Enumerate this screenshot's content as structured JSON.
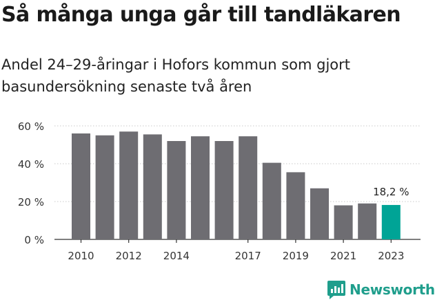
{
  "header": {
    "title": "Så många unga går till tandläkaren",
    "subtitle": "Andel 24–29-åringar i Hofors kommun som gjort basundersökning senaste två åren"
  },
  "brand": {
    "name": "Newsworthy",
    "logo_icon": "bar-chart-speech-bubble-icon"
  },
  "colors": {
    "bar": "#6e6d72",
    "highlight": "#00a496",
    "grid": "#c9c9c9",
    "axis": "#333333",
    "brand": "#1f9e8c"
  },
  "chart_data": {
    "type": "bar",
    "categories": [
      "2010",
      "2011",
      "2012",
      "2013",
      "2014",
      "2015",
      "2016",
      "2017",
      "2018",
      "2019",
      "2020",
      "2021",
      "2022",
      "2023"
    ],
    "values": [
      56,
      55,
      57,
      55.5,
      52,
      54.5,
      52,
      54.5,
      40.5,
      35.5,
      27,
      18,
      19,
      18.2
    ],
    "x_tick_labels": [
      "2010",
      "",
      "2012",
      "",
      "2014",
      "",
      "",
      "2017",
      "",
      "2019",
      "",
      "2021",
      "",
      "2023"
    ],
    "y_ticks": [
      0,
      20,
      40,
      60
    ],
    "y_tick_labels": [
      "0 %",
      "20 %",
      "40 %",
      "60 %"
    ],
    "ylim": [
      0,
      60
    ],
    "highlight_index": 13,
    "annotation": "18,2 %",
    "title": "Så många unga går till tandläkaren",
    "xlabel": "",
    "ylabel": "",
    "grid": true,
    "legend": "none"
  }
}
